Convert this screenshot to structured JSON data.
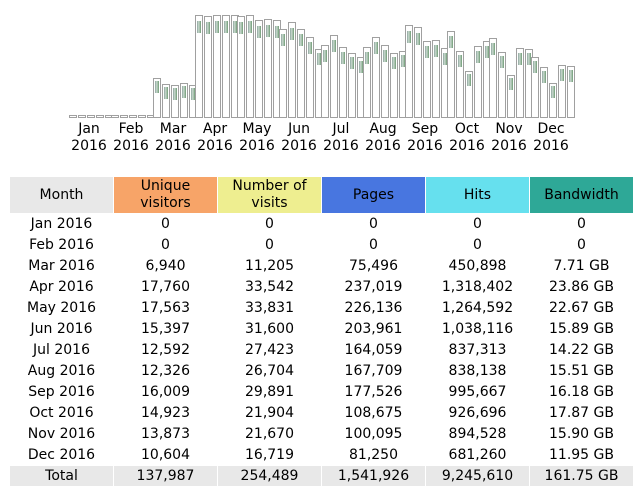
{
  "chart_data": {
    "type": "bar",
    "categories": [
      [
        "Jan",
        "2016"
      ],
      [
        "Feb",
        "2016"
      ],
      [
        "Mar",
        "2016"
      ],
      [
        "Apr",
        "2016"
      ],
      [
        "May",
        "2016"
      ],
      [
        "Jun",
        "2016"
      ],
      [
        "Jul",
        "2016"
      ],
      [
        "Aug",
        "2016"
      ],
      [
        "Sep",
        "2016"
      ],
      [
        "Oct",
        "2016"
      ],
      [
        "Nov",
        "2016"
      ],
      [
        "Dec",
        "2016"
      ]
    ],
    "series": [
      {
        "name": "Unique visitors",
        "values": [
          0,
          0,
          6940,
          17760,
          17563,
          15397,
          12592,
          12326,
          16009,
          14923,
          13873,
          10604
        ]
      },
      {
        "name": "Number of visits",
        "values": [
          0,
          0,
          11205,
          33542,
          33831,
          31600,
          27423,
          26704,
          29891,
          21904,
          21670,
          16719
        ]
      },
      {
        "name": "Pages",
        "values": [
          0,
          0,
          75496,
          237019,
          226136,
          203961,
          164059,
          167709,
          177526,
          108675,
          100095,
          81250
        ]
      },
      {
        "name": "Hits",
        "values": [
          0,
          0,
          450898,
          1318402,
          1264592,
          1038116,
          837313,
          838138,
          995667,
          926696,
          894528,
          681260
        ]
      },
      {
        "name": "Bandwidth",
        "values": [
          0,
          0,
          7.71,
          23.86,
          22.67,
          15.89,
          14.22,
          15.51,
          16.18,
          17.87,
          15.9,
          11.95
        ]
      }
    ]
  },
  "table": {
    "headers": {
      "month": "Month",
      "unique_visitors": "Unique visitors",
      "visits": "Number of visits",
      "pages": "Pages",
      "hits": "Hits",
      "bandwidth": "Bandwidth"
    },
    "header_colors": {
      "unique_visitors": "#f7a468",
      "visits": "#eeee90",
      "pages": "#4876e0",
      "hits": "#66e0ee",
      "bandwidth": "#2ea897"
    },
    "rows": [
      {
        "month": "Jan 2016",
        "unique": "0",
        "visits": "0",
        "pages": "0",
        "hits": "0",
        "bandwidth": "0"
      },
      {
        "month": "Feb 2016",
        "unique": "0",
        "visits": "0",
        "pages": "0",
        "hits": "0",
        "bandwidth": "0"
      },
      {
        "month": "Mar 2016",
        "unique": "6,940",
        "visits": "11,205",
        "pages": "75,496",
        "hits": "450,898",
        "bandwidth": "7.71 GB"
      },
      {
        "month": "Apr 2016",
        "unique": "17,760",
        "visits": "33,542",
        "pages": "237,019",
        "hits": "1,318,402",
        "bandwidth": "23.86 GB"
      },
      {
        "month": "May 2016",
        "unique": "17,563",
        "visits": "33,831",
        "pages": "226,136",
        "hits": "1,264,592",
        "bandwidth": "22.67 GB"
      },
      {
        "month": "Jun 2016",
        "unique": "15,397",
        "visits": "31,600",
        "pages": "203,961",
        "hits": "1,038,116",
        "bandwidth": "15.89 GB"
      },
      {
        "month": "Jul 2016",
        "unique": "12,592",
        "visits": "27,423",
        "pages": "164,059",
        "hits": "837,313",
        "bandwidth": "14.22 GB"
      },
      {
        "month": "Aug 2016",
        "unique": "12,326",
        "visits": "26,704",
        "pages": "167,709",
        "hits": "838,138",
        "bandwidth": "15.51 GB"
      },
      {
        "month": "Sep 2016",
        "unique": "16,009",
        "visits": "29,891",
        "pages": "177,526",
        "hits": "995,667",
        "bandwidth": "16.18 GB"
      },
      {
        "month": "Oct 2016",
        "unique": "14,923",
        "visits": "21,904",
        "pages": "108,675",
        "hits": "926,696",
        "bandwidth": "17.87 GB"
      },
      {
        "month": "Nov 2016",
        "unique": "13,873",
        "visits": "21,670",
        "pages": "100,095",
        "hits": "894,528",
        "bandwidth": "15.90 GB"
      },
      {
        "month": "Dec 2016",
        "unique": "10,604",
        "visits": "16,719",
        "pages": "81,250",
        "hits": "681,260",
        "bandwidth": "11.95 GB"
      }
    ],
    "total": {
      "month": "Total",
      "unique": "137,987",
      "visits": "254,489",
      "pages": "1,541,926",
      "hits": "9,245,610",
      "bandwidth": "161.75 GB"
    }
  }
}
